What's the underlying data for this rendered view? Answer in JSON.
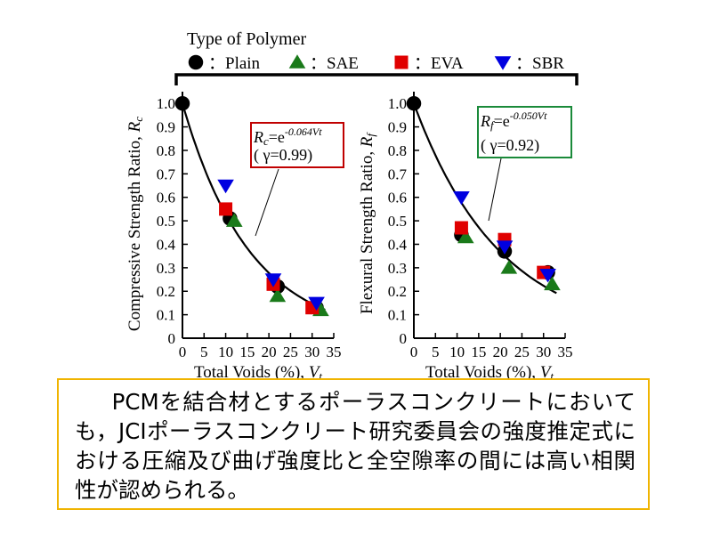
{
  "legend": {
    "title": "Type of Polymer",
    "items": [
      {
        "marker": "circle",
        "color": "#000000",
        "label": "：Plain"
      },
      {
        "marker": "triangle-up",
        "color": "#1a7a1a",
        "label": "：SAE"
      },
      {
        "marker": "square",
        "color": "#e00000",
        "label": "：EVA"
      },
      {
        "marker": "triangle-down",
        "color": "#0000e0",
        "label": "：SBR"
      }
    ]
  },
  "chart_data": [
    {
      "type": "scatter",
      "ylabel_text": "Compressive Strength Ratio,",
      "ylabel_symbol": "Rc",
      "xlabel_text": "Total Voids (%),",
      "xlabel_symbol": "Vt",
      "xlim": [
        0,
        35
      ],
      "ylim": [
        0,
        1.05
      ],
      "x_ticks": [
        "0",
        "5",
        "10",
        "15",
        "20",
        "25",
        "30",
        "35"
      ],
      "y_ticks": [
        "0",
        "0.1",
        "0.2",
        "0.3",
        "0.4",
        "0.5",
        "0.6",
        "0.7",
        "0.8",
        "0.9",
        "1.0"
      ],
      "equation": {
        "lhs": "Rc",
        "base": "=e",
        "exponent": "-0.064Vt",
        "corr": "( γ=0.99)",
        "border_color": "#c00000"
      },
      "fit_coefficient": -0.064,
      "series": [
        {
          "name": "Plain",
          "points": [
            [
              0,
              1.0
            ],
            [
              11,
              0.51
            ],
            [
              22,
              0.22
            ],
            [
              31,
              0.13
            ]
          ]
        },
        {
          "name": "SAE",
          "points": [
            [
              12,
              0.5
            ],
            [
              22,
              0.18
            ],
            [
              32,
              0.12
            ]
          ]
        },
        {
          "name": "EVA",
          "points": [
            [
              10,
              0.55
            ],
            [
              21,
              0.23
            ],
            [
              30,
              0.13
            ]
          ]
        },
        {
          "name": "SBR",
          "points": [
            [
              10,
              0.65
            ],
            [
              21,
              0.25
            ],
            [
              31,
              0.15
            ]
          ]
        }
      ]
    },
    {
      "type": "scatter",
      "ylabel_text": "Flexural Strength Ratio,",
      "ylabel_symbol": "Rf",
      "xlabel_text": "Total Voids (%),",
      "xlabel_symbol": "Vt",
      "xlim": [
        0,
        35
      ],
      "ylim": [
        0,
        1.05
      ],
      "x_ticks": [
        "0",
        "5",
        "10",
        "15",
        "20",
        "25",
        "30",
        "35"
      ],
      "y_ticks": [
        "0",
        "0.1",
        "0.2",
        "0.3",
        "0.4",
        "0.5",
        "0.6",
        "0.7",
        "0.8",
        "0.9",
        "1.0"
      ],
      "equation": {
        "lhs": "Rf",
        "base": "=e",
        "exponent": "-0.050Vt",
        "corr": "( γ=0.92)",
        "border_color": "#1a8a3a"
      },
      "fit_coefficient": -0.05,
      "series": [
        {
          "name": "Plain",
          "points": [
            [
              0,
              1.0
            ],
            [
              11,
              0.44
            ],
            [
              21,
              0.37
            ],
            [
              31,
              0.28
            ]
          ]
        },
        {
          "name": "SAE",
          "points": [
            [
              12,
              0.43
            ],
            [
              22,
              0.3
            ],
            [
              32,
              0.23
            ]
          ]
        },
        {
          "name": "EVA",
          "points": [
            [
              11,
              0.47
            ],
            [
              21,
              0.42
            ],
            [
              30,
              0.28
            ]
          ]
        },
        {
          "name": "SBR",
          "points": [
            [
              11,
              0.6
            ],
            [
              21,
              0.39
            ],
            [
              31,
              0.27
            ]
          ]
        }
      ]
    }
  ],
  "caption": "PCMを結合材とするポーラスコンクリートにおいても，JCIポーラスコンクリート研究委員会の強度推定式における圧縮及び曲げ強度比と全空隙率の間には高い相関性が認められる。"
}
